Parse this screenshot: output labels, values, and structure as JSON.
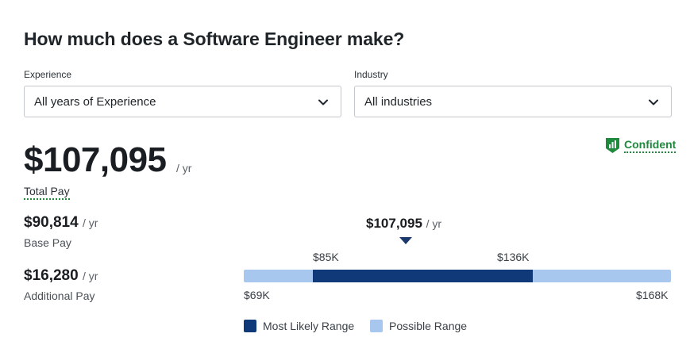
{
  "title": "How much does a Software Engineer make?",
  "filters": {
    "experience": {
      "label": "Experience",
      "value": "All years of Experience"
    },
    "industry": {
      "label": "Industry",
      "value": "All industries"
    }
  },
  "total_pay": {
    "amount": "$107,095",
    "per": "/ yr",
    "label": "Total Pay"
  },
  "confidence": {
    "label": "Confident",
    "color": "#1f8a3c"
  },
  "base_pay": {
    "amount": "$90,814",
    "per": "/ yr",
    "label": "Base Pay"
  },
  "additional_pay": {
    "amount": "$16,280",
    "per": "/ yr",
    "label": "Additional Pay"
  },
  "range": {
    "median": "$107,095",
    "median_per": "/ yr",
    "likely_low": "$85K",
    "likely_high": "$136K",
    "possible_low": "$69K",
    "possible_high": "$168K",
    "values": {
      "min": 69000,
      "likely_low": 85000,
      "median": 107095,
      "likely_high": 136000,
      "max": 168000
    }
  },
  "legend": {
    "likely": {
      "label": "Most Likely Range",
      "color": "#10397a"
    },
    "possible": {
      "label": "Possible Range",
      "color": "#a8c7ee"
    }
  }
}
